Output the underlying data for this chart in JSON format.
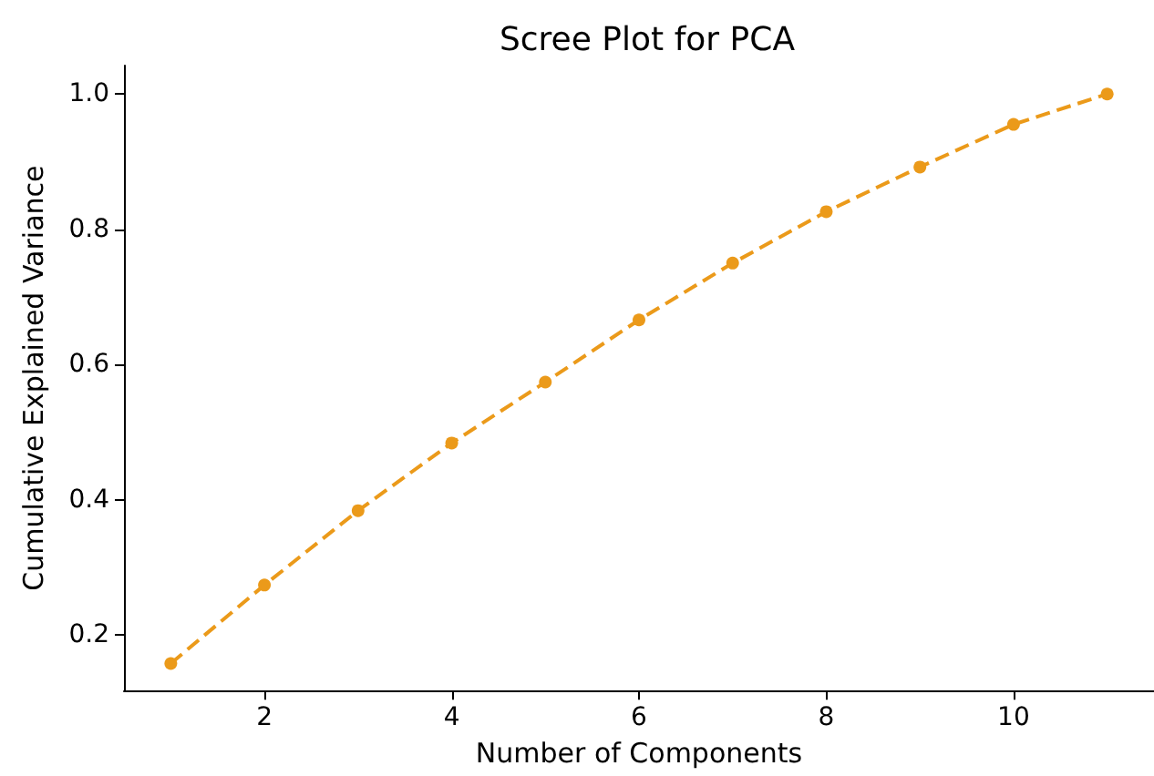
{
  "chart_data": {
    "type": "line",
    "title": "Scree Plot for PCA",
    "xlabel": "Number of Components",
    "ylabel": "Cumulative Explained Variance",
    "x": [
      1,
      2,
      3,
      4,
      5,
      6,
      7,
      8,
      9,
      10,
      11
    ],
    "series": [
      {
        "color": "#eb9a1a",
        "values": [
          0.158,
          0.274,
          0.384,
          0.484,
          0.574,
          0.666,
          0.75,
          0.826,
          0.892,
          0.955,
          1.0
        ]
      }
    ],
    "xlim": [
      0.5,
      11.5
    ],
    "xticks": [
      2,
      4,
      6,
      8,
      10
    ],
    "ylim": [
      0.118,
      1.042
    ],
    "yticks": [
      0.2,
      0.4,
      0.6,
      0.8,
      {
        "value": 1.0,
        "label": "1.0"
      }
    ],
    "grid": false,
    "marker": "circle",
    "line_style": "dashed"
  }
}
